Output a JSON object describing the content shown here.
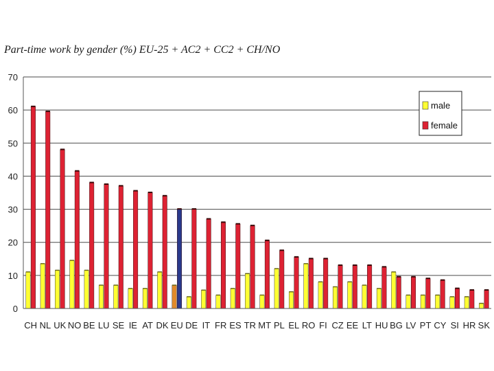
{
  "chart_data": {
    "type": "bar",
    "title": "Part-time work by gender (%) EU-25 + AC2 + CC2 + CH/NO",
    "xlabel": "",
    "ylabel": "",
    "ylim": [
      0,
      70
    ],
    "yticks": [
      0,
      10,
      20,
      30,
      40,
      50,
      60,
      70
    ],
    "grid": true,
    "legend_position": "top-right",
    "categories": [
      "CH",
      "NL",
      "UK",
      "NO",
      "BE",
      "LU",
      "SE",
      "IE",
      "AT",
      "DK",
      "EU",
      "DE",
      "IT",
      "FR",
      "ES",
      "TR",
      "MT",
      "PL",
      "EL",
      "RO",
      "FI",
      "CZ",
      "EE",
      "LT",
      "HU",
      "BG",
      "LV",
      "PT",
      "CY",
      "SI",
      "HR",
      "SK"
    ],
    "series": [
      {
        "name": "male",
        "color": "#ffff33",
        "values": [
          11,
          13.5,
          11.5,
          14.5,
          11.5,
          7,
          7,
          6,
          6,
          11,
          7,
          3.5,
          5.5,
          4,
          6,
          10.5,
          4,
          12,
          5,
          13.5,
          8,
          6.5,
          8,
          7,
          6,
          11,
          4,
          4,
          4,
          3.5,
          3.5,
          1.5
        ]
      },
      {
        "name": "female",
        "color": "#dd2233",
        "values": [
          61,
          59.5,
          48,
          41.5,
          38,
          37.5,
          37,
          35.5,
          35,
          34,
          30,
          30,
          27,
          26,
          25.5,
          25,
          20.5,
          17.5,
          15.5,
          15,
          15,
          13,
          13,
          13,
          12.5,
          9.5,
          9.5,
          9,
          8.5,
          6,
          5.5,
          5.5
        ]
      }
    ],
    "highlight": {
      "category": "EU",
      "male_color": "#e08a2a",
      "female_color": "#2a3a8c"
    },
    "legend": {
      "male_label": "male",
      "female_label": "female"
    }
  }
}
